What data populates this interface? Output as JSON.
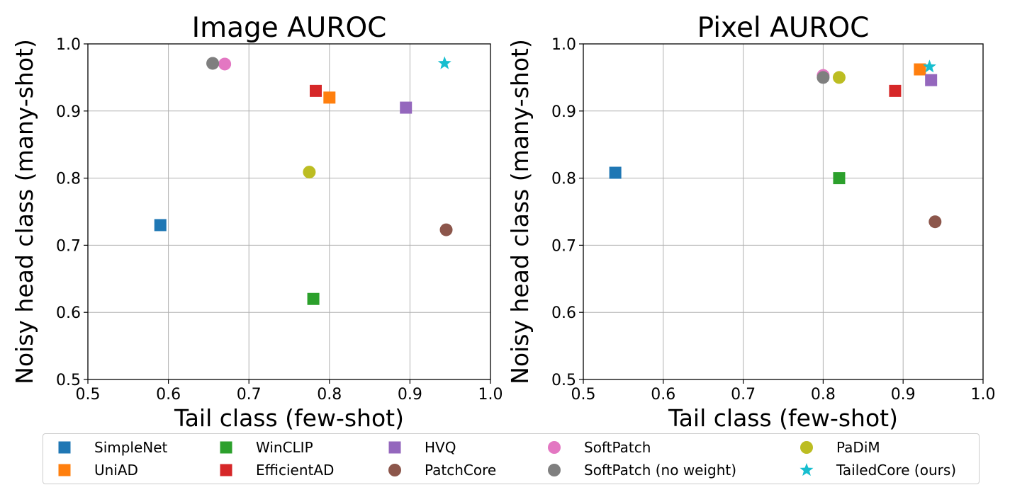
{
  "colors": {
    "SimpleNet": "#1f77b4",
    "UniAD": "#ff7f0e",
    "WinCLIP": "#2ca02c",
    "EfficientAD": "#d62728",
    "HVQ": "#9467bd",
    "PatchCore": "#8c564b",
    "SoftPatch": "#e377c2",
    "SoftPatch (no weight)": "#7f7f7f",
    "PaDiM": "#bcbd22",
    "TailedCore (ours)": "#17becf"
  },
  "legend": [
    {
      "name": "SimpleNet",
      "marker": "square"
    },
    {
      "name": "UniAD",
      "marker": "square"
    },
    {
      "name": "WinCLIP",
      "marker": "square"
    },
    {
      "name": "EfficientAD",
      "marker": "square"
    },
    {
      "name": "HVQ",
      "marker": "square"
    },
    {
      "name": "PatchCore",
      "marker": "circle"
    },
    {
      "name": "SoftPatch",
      "marker": "circle"
    },
    {
      "name": "SoftPatch (no weight)",
      "marker": "circle"
    },
    {
      "name": "PaDiM",
      "marker": "circle"
    },
    {
      "name": "TailedCore (ours)",
      "marker": "star"
    }
  ],
  "chart_data": [
    {
      "type": "scatter",
      "title": "Image AUROC",
      "xlabel": "Tail class (few-shot)",
      "ylabel": "Noisy head class (many-shot)",
      "xlim": [
        0.5,
        1.0
      ],
      "ylim": [
        0.5,
        1.0
      ],
      "xticks": [
        "0.5",
        "0.6",
        "0.7",
        "0.8",
        "0.9",
        "1.0"
      ],
      "yticks": [
        "0.5",
        "0.6",
        "0.7",
        "0.8",
        "0.9",
        "1.0"
      ],
      "grid": true,
      "points": [
        {
          "series": "SimpleNet",
          "x": 0.59,
          "y": 0.73
        },
        {
          "series": "UniAD",
          "x": 0.8,
          "y": 0.92
        },
        {
          "series": "WinCLIP",
          "x": 0.78,
          "y": 0.62
        },
        {
          "series": "EfficientAD",
          "x": 0.783,
          "y": 0.93
        },
        {
          "series": "HVQ",
          "x": 0.895,
          "y": 0.905
        },
        {
          "series": "PatchCore",
          "x": 0.945,
          "y": 0.723
        },
        {
          "series": "SoftPatch",
          "x": 0.67,
          "y": 0.97
        },
        {
          "series": "SoftPatch (no weight)",
          "x": 0.655,
          "y": 0.971
        },
        {
          "series": "PaDiM",
          "x": 0.775,
          "y": 0.809
        },
        {
          "series": "TailedCore (ours)",
          "x": 0.943,
          "y": 0.971
        }
      ]
    },
    {
      "type": "scatter",
      "title": "Pixel AUROC",
      "xlabel": "Tail class (few-shot)",
      "ylabel": "Noisy head class (many-shot)",
      "xlim": [
        0.5,
        1.0
      ],
      "ylim": [
        0.5,
        1.0
      ],
      "xticks": [
        "0.5",
        "0.6",
        "0.7",
        "0.8",
        "0.9",
        "1.0"
      ],
      "yticks": [
        "0.5",
        "0.6",
        "0.7",
        "0.8",
        "0.9",
        "1.0"
      ],
      "grid": true,
      "points": [
        {
          "series": "SimpleNet",
          "x": 0.54,
          "y": 0.808
        },
        {
          "series": "UniAD",
          "x": 0.921,
          "y": 0.962
        },
        {
          "series": "WinCLIP",
          "x": 0.82,
          "y": 0.8
        },
        {
          "series": "EfficientAD",
          "x": 0.89,
          "y": 0.93
        },
        {
          "series": "HVQ",
          "x": 0.935,
          "y": 0.946
        },
        {
          "series": "PatchCore",
          "x": 0.94,
          "y": 0.735
        },
        {
          "series": "SoftPatch",
          "x": 0.8,
          "y": 0.953
        },
        {
          "series": "SoftPatch (no weight)",
          "x": 0.8,
          "y": 0.95
        },
        {
          "series": "PaDiM",
          "x": 0.82,
          "y": 0.95
        },
        {
          "series": "TailedCore (ours)",
          "x": 0.933,
          "y": 0.966
        }
      ]
    }
  ]
}
